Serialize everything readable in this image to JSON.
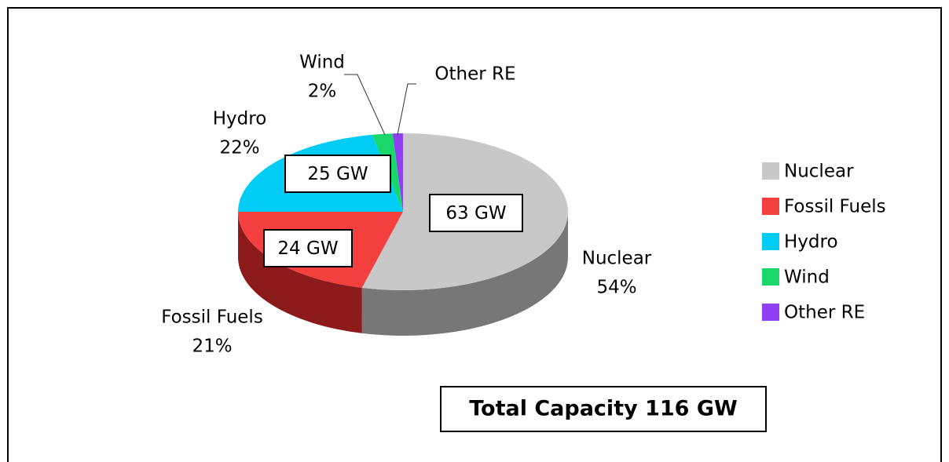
{
  "chart_data": {
    "type": "pie",
    "categories": [
      "Nuclear",
      "Fossil Fuels",
      "Hydro",
      "Wind",
      "Other RE"
    ],
    "values": [
      54,
      21,
      22,
      2,
      1
    ],
    "value_labels": [
      "54%",
      "21%",
      "22%",
      "2%",
      null
    ],
    "colors": [
      "#c8c8c8",
      "#f43f3f",
      "#00ccf5",
      "#19d76a",
      "#9040f2"
    ],
    "side_colors": [
      "#777777",
      "#8c1a1a",
      "#0090b0",
      "#10904a",
      "#602aa0"
    ],
    "gw_values": [
      63,
      24,
      25,
      null,
      null
    ],
    "gw_labels": [
      "63 GW",
      "24 GW",
      "25 GW",
      null,
      null
    ],
    "total_label": "Total Capacity 116 GW",
    "legend": "right"
  }
}
